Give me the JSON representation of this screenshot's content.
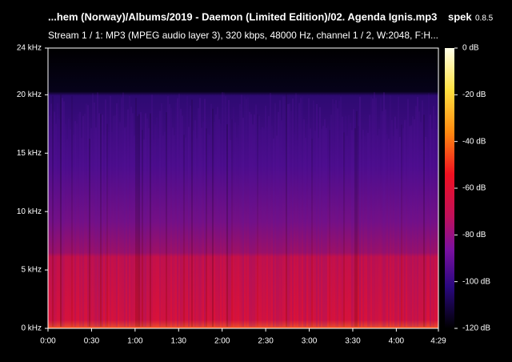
{
  "chart_data": {
    "type": "spectrogram",
    "title": "...hem (Norway)/Albums/2019 - Daemon (Limited Edition)/02. Agenda Ignis.mp3",
    "app_name": "spek",
    "app_version": "0.8.5",
    "subtitle": "Stream 1 / 1: MP3 (MPEG audio layer 3), 320 kbps, 48000 Hz, channel 1 / 2, W:2048, F:H...",
    "xlim": [
      0,
      269
    ],
    "xticks": [
      {
        "value": 0,
        "label": "0:00"
      },
      {
        "value": 30,
        "label": "0:30"
      },
      {
        "value": 60,
        "label": "1:00"
      },
      {
        "value": 90,
        "label": "1:30"
      },
      {
        "value": 120,
        "label": "2:00"
      },
      {
        "value": 150,
        "label": "2:30"
      },
      {
        "value": 180,
        "label": "3:00"
      },
      {
        "value": 210,
        "label": "3:30"
      },
      {
        "value": 240,
        "label": "4:00"
      },
      {
        "value": 269,
        "label": "4:29"
      }
    ],
    "ylim": [
      0,
      24
    ],
    "yticks": [
      {
        "value": 0,
        "label": "0 kHz"
      },
      {
        "value": 5,
        "label": "5 kHz"
      },
      {
        "value": 10,
        "label": "10 kHz"
      },
      {
        "value": 15,
        "label": "15 kHz"
      },
      {
        "value": 20,
        "label": "20 kHz"
      },
      {
        "value": 24,
        "label": "24 kHz"
      }
    ],
    "clim": [
      -120,
      0
    ],
    "cticks": [
      {
        "value": 0,
        "label": "0 dB"
      },
      {
        "value": -20,
        "label": "-20 dB"
      },
      {
        "value": -40,
        "label": "-40 dB"
      },
      {
        "value": -60,
        "label": "-60 dB"
      },
      {
        "value": -80,
        "label": "-80 dB"
      },
      {
        "value": -100,
        "label": "-100 dB"
      },
      {
        "value": -120,
        "label": "-120 dB"
      }
    ]
  }
}
